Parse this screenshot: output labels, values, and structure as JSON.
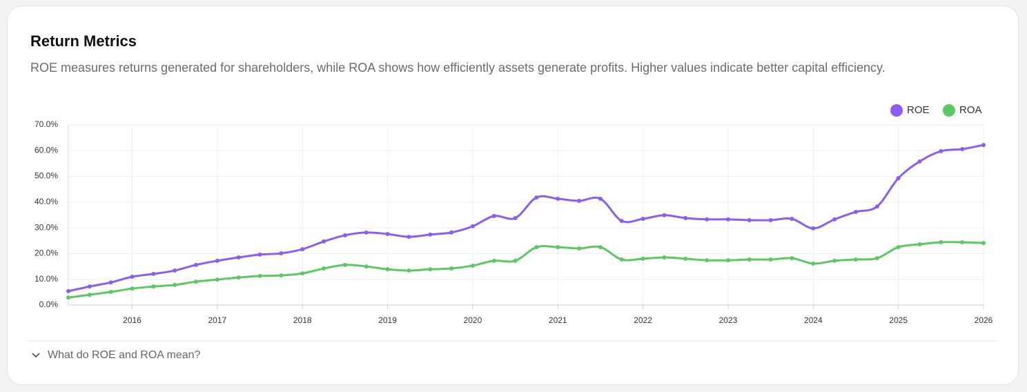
{
  "chart_data": {
    "type": "line",
    "title": "Return Metrics",
    "subtitle": "ROE measures returns generated for shareholders, while ROA shows how efficiently assets generate profits. Higher values indicate better capital efficiency.",
    "x": [
      2015.25,
      2015.5,
      2015.75,
      2016,
      2016.25,
      2016.5,
      2016.75,
      2017,
      2017.25,
      2017.5,
      2017.75,
      2018,
      2018.25,
      2018.5,
      2018.75,
      2019,
      2019.25,
      2019.5,
      2019.75,
      2020,
      2020.25,
      2020.5,
      2020.75,
      2021,
      2021.25,
      2021.5,
      2021.75,
      2022,
      2022.25,
      2022.5,
      2022.75,
      2023,
      2023.25,
      2023.5,
      2023.75,
      2024,
      2024.25,
      2024.5,
      2024.75,
      2025,
      2025.25,
      2025.5,
      2025.75,
      2026
    ],
    "series": [
      {
        "name": "ROE",
        "color": "#8b5cf6",
        "values": [
          5.4,
          7.2,
          8.8,
          11.0,
          12.1,
          13.4,
          15.6,
          17.2,
          18.5,
          19.6,
          20.1,
          21.7,
          24.7,
          27.1,
          28.2,
          27.6,
          26.5,
          27.4,
          28.2,
          30.6,
          34.6,
          33.8,
          41.8,
          41.3,
          40.5,
          41.3,
          32.7,
          33.5,
          34.9,
          33.8,
          33.3,
          33.3,
          33.0,
          33.0,
          33.5,
          29.8,
          33.3,
          36.2,
          38.3,
          49.3,
          55.8,
          59.8,
          60.6,
          62.2
        ]
      },
      {
        "name": "ROA",
        "color": "#5cc864",
        "values": [
          2.9,
          4.0,
          5.1,
          6.4,
          7.2,
          7.8,
          9.1,
          9.9,
          10.7,
          11.3,
          11.5,
          12.3,
          14.2,
          15.6,
          15.0,
          13.9,
          13.4,
          13.9,
          14.2,
          15.3,
          17.2,
          17.2,
          22.5,
          22.5,
          22.0,
          22.5,
          17.7,
          18.0,
          18.5,
          18.0,
          17.4,
          17.4,
          17.7,
          17.7,
          18.2,
          16.1,
          17.2,
          17.7,
          18.2,
          22.5,
          23.6,
          24.4,
          24.4,
          24.1
        ]
      }
    ],
    "xlim": [
      2015.25,
      2026
    ],
    "xticks": [
      2016,
      2017,
      2018,
      2019,
      2020,
      2021,
      2022,
      2023,
      2024,
      2025,
      2026
    ],
    "ylim": [
      0,
      70
    ],
    "yticks": [
      {
        "value": 0,
        "label": "0.0%"
      },
      {
        "value": 10,
        "label": "10.0%"
      },
      {
        "value": 20,
        "label": "20.0%"
      },
      {
        "value": 30,
        "label": "30.0%"
      },
      {
        "value": 40,
        "label": "40.0%"
      },
      {
        "value": 50,
        "label": "50.0%"
      },
      {
        "value": 60,
        "label": "60.0%"
      },
      {
        "value": 70,
        "label": "70.0%"
      }
    ],
    "grid": true,
    "legend": "top-right"
  },
  "details_toggle": "What do ROE and ROA mean?"
}
